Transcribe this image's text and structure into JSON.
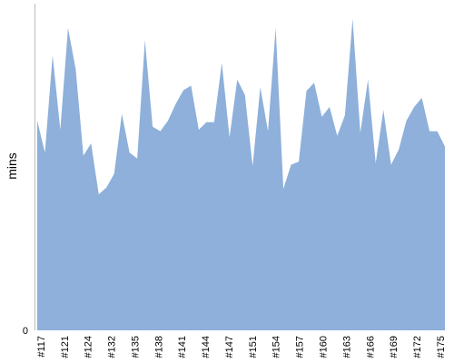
{
  "chart_data": {
    "type": "area",
    "xlabel": "",
    "ylabel": "mins",
    "y_tick_labels": [
      "0"
    ],
    "ylim": [
      0,
      43
    ],
    "grid": false,
    "legend": "none",
    "colors": {
      "area": "#8eb0da",
      "axis": "#bbbbbb",
      "text": "#000000"
    },
    "x_tick_labels": [
      "#117",
      "#121",
      "#124",
      "#132",
      "#135",
      "#138",
      "#141",
      "#144",
      "#147",
      "#151",
      "#154",
      "#157",
      "#160",
      "#163",
      "#166",
      "#169",
      "#172",
      "#175"
    ],
    "series": [
      {
        "values": [
          27.6,
          23.4,
          36.2,
          26.4,
          39.8,
          34.4,
          23.0,
          24.6,
          17.9,
          18.8,
          20.6,
          28.5,
          23.4,
          22.6,
          38.2,
          26.8,
          26.2,
          27.6,
          29.8,
          31.6,
          32.2,
          26.4,
          27.4,
          27.4,
          35.2,
          25.4,
          33.0,
          31.0,
          21.6,
          32.0,
          26.2,
          39.8,
          18.6,
          21.8,
          22.2,
          31.5,
          32.6,
          28.1,
          29.4,
          25.6,
          28.3,
          41.0,
          26.0,
          33.0,
          22.0,
          29.0,
          21.8,
          23.8,
          27.6,
          29.4,
          30.6,
          26.2,
          26.2,
          24.2
        ]
      }
    ]
  }
}
